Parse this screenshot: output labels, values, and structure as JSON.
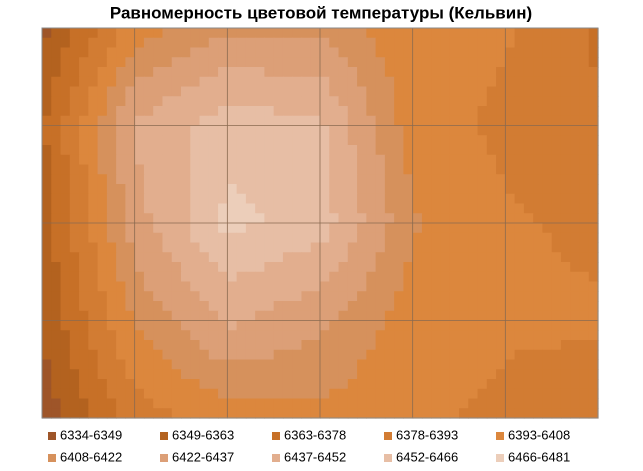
{
  "chart_data": {
    "type": "contour",
    "title": "Равномерность цветовой температуры (Кельвин)",
    "z": [
      [
        6345,
        6400,
        6420,
        6420,
        6395,
        6395,
        6375
      ],
      [
        6360,
        6440,
        6460,
        6455,
        6400,
        6390,
        6380
      ],
      [
        6355,
        6430,
        6470,
        6460,
        6410,
        6395,
        6390
      ],
      [
        6350,
        6410,
        6440,
        6425,
        6400,
        6395,
        6395
      ],
      [
        6340,
        6385,
        6400,
        6405,
        6395,
        6390,
        6385
      ]
    ],
    "levels": [
      6334,
      6349,
      6363,
      6378,
      6393,
      6408,
      6422,
      6437,
      6452,
      6466,
      6481
    ],
    "bands": [
      {
        "name": "6334-6349",
        "color": "#9e5529"
      },
      {
        "name": "6349-6363",
        "color": "#b3621f"
      },
      {
        "name": "6363-6378",
        "color": "#c77027"
      },
      {
        "name": "6378-6393",
        "color": "#d27c33"
      },
      {
        "name": "6393-6408",
        "color": "#dc873d"
      },
      {
        "name": "6408-6422",
        "color": "#d6915c"
      },
      {
        "name": "6422-6437",
        "color": "#dc9f77"
      },
      {
        "name": "6437-6452",
        "color": "#e2ae8e"
      },
      {
        "name": "6452-6466",
        "color": "#e7bea5"
      },
      {
        "name": "6466-6481",
        "color": "#ecceba"
      }
    ],
    "grid": true
  }
}
